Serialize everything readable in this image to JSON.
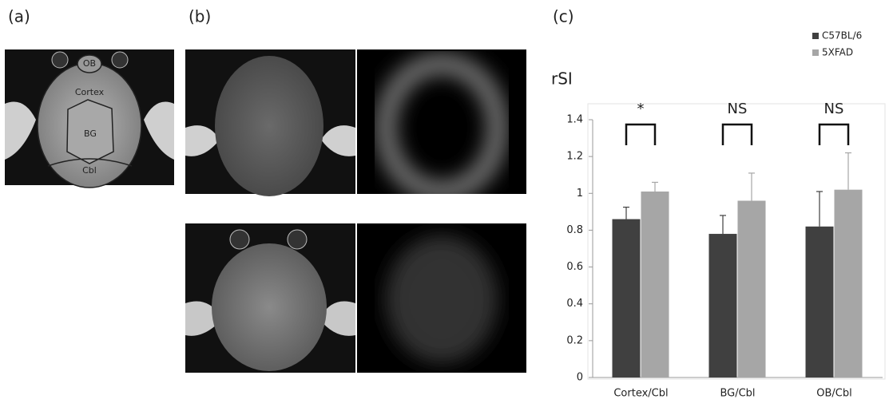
{
  "panel_labels": [
    "(a)",
    "(b)",
    "(c)"
  ],
  "region_labels": [
    "OB",
    "Cortex",
    "BG",
    "Cbl"
  ],
  "chart_data": {
    "type": "bar",
    "y_label": "rSI",
    "categories": [
      "Cortex/Cbl",
      "BG/Cbl",
      "OB/Cbl"
    ],
    "series": [
      {
        "name": "C57BL/6",
        "color": "#404040",
        "values": [
          0.86,
          0.78,
          0.82
        ],
        "errors": [
          0.065,
          0.1,
          0.19
        ]
      },
      {
        "name": "5XFAD",
        "color": "#a6a6a6",
        "values": [
          1.01,
          0.96,
          1.02
        ],
        "errors": [
          0.05,
          0.15,
          0.2
        ]
      }
    ],
    "annotations": [
      "*",
      "NS",
      "NS"
    ],
    "ylim": [
      0,
      1.4
    ],
    "yticks": [
      0,
      0.2,
      0.4,
      0.6,
      0.8,
      1,
      1.2,
      1.4
    ],
    "legend": "top-right"
  }
}
